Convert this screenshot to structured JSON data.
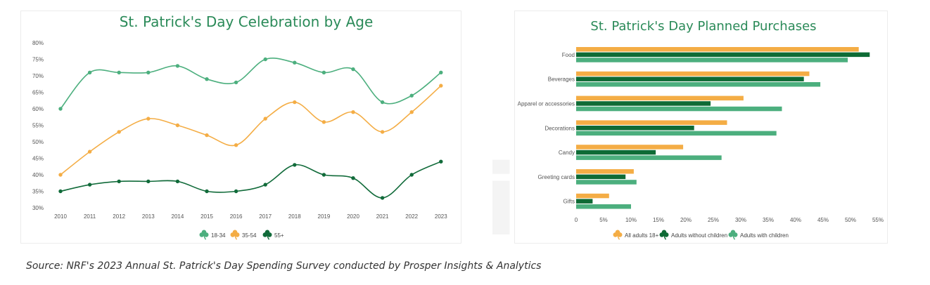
{
  "colors": {
    "age_18_34": "#4caf7e",
    "age_35_54": "#f4ad45",
    "age_55_plus": "#116b3a",
    "all_adults": "#f4ad45",
    "adults_without_children": "#0e6b35",
    "adults_with_children": "#4caf7e",
    "title": "#2a8a58"
  },
  "legend_icon": "shamrock-icon",
  "source_note": "Source: NRF's 2023 Annual St. Patrick's Day Spending Survey conducted by Prosper Insights & Analytics",
  "chart_data": [
    {
      "type": "line",
      "title": "St. Patrick's Day Celebration by Age",
      "x": [
        "2010",
        "2011",
        "2012",
        "2013",
        "2014",
        "2015",
        "2016",
        "2017",
        "2018",
        "2019",
        "2020",
        "2021",
        "2022",
        "2023"
      ],
      "ylim": [
        30,
        80
      ],
      "y_ticks": [
        "30%",
        "35%",
        "40%",
        "45%",
        "50%",
        "55%",
        "60%",
        "65%",
        "70%",
        "75%",
        "80%"
      ],
      "grid": false,
      "legend_position": "bottom",
      "series": [
        {
          "name": "18-34",
          "values": [
            60,
            71,
            71,
            71,
            73,
            69,
            68,
            75,
            74,
            71,
            72,
            62,
            64,
            71
          ]
        },
        {
          "name": "35-54",
          "values": [
            40,
            47,
            53,
            57,
            55,
            52,
            49,
            57,
            62,
            56,
            59,
            53,
            59,
            67
          ]
        },
        {
          "name": "55+",
          "values": [
            35,
            37,
            38,
            38,
            38,
            35,
            35,
            37,
            43,
            40,
            39,
            33,
            40,
            44
          ]
        }
      ]
    },
    {
      "type": "bar",
      "orientation": "horizontal",
      "title": "St. Patrick's Day Planned Purchases",
      "categories": [
        "Food",
        "Beverages",
        "Apparel or accessories",
        "Decorations",
        "Candy",
        "Greeting cards",
        "Gifts"
      ],
      "xlim": [
        0,
        55
      ],
      "x_ticks": [
        "0",
        "5%",
        "10%",
        "15%",
        "20%",
        "25%",
        "30%",
        "35%",
        "40%",
        "45%",
        "50%",
        "55%"
      ],
      "grid": false,
      "legend_position": "bottom",
      "series": [
        {
          "name": "All adults 18+",
          "values": [
            51.5,
            42.5,
            30.5,
            27.5,
            19.5,
            10.5,
            6
          ]
        },
        {
          "name": "Adults without children",
          "values": [
            53.5,
            41.5,
            24.5,
            21.5,
            14.5,
            9,
            3
          ]
        },
        {
          "name": "Adults with children",
          "values": [
            49.5,
            44.5,
            37.5,
            36.5,
            26.5,
            11,
            10
          ]
        }
      ]
    }
  ]
}
